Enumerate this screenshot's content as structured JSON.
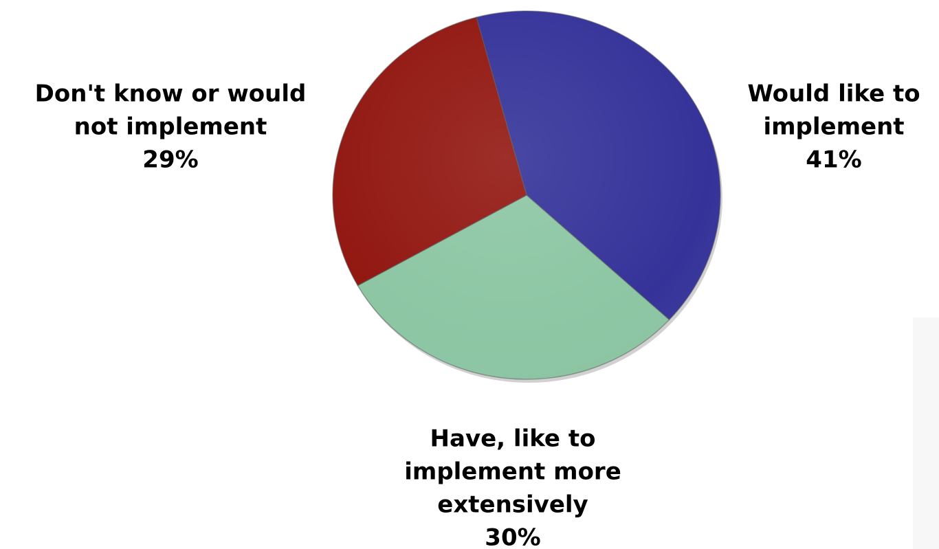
{
  "chart_data": {
    "type": "pie",
    "title": "",
    "start_angle_deg": -15,
    "direction": "clockwise",
    "slices": [
      {
        "label_lines": [
          "Would like to",
          "implement"
        ],
        "value": 41,
        "value_label": "41%",
        "color": "#353399"
      },
      {
        "label_lines": [
          "Have, like to",
          "implement more",
          "extensively"
        ],
        "value": 30,
        "value_label": "30%",
        "color": "#8cc6a3"
      },
      {
        "label_lines": [
          "Don't know or would",
          "not implement"
        ],
        "value": 29,
        "value_label": "29%",
        "color": "#921711"
      }
    ]
  }
}
